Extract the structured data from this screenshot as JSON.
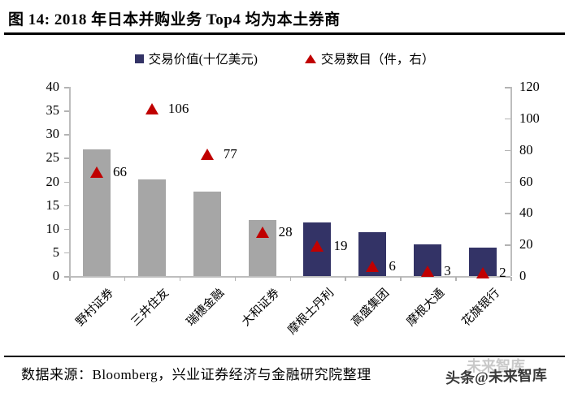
{
  "header": {
    "title": "图 14: 2018 年日本并购业务 Top4 均为本土券商"
  },
  "legend": {
    "bars": "交易价值(十亿美元)",
    "markers": "交易数目（件，右）"
  },
  "chart_data": {
    "type": "bar",
    "title": "2018 年日本并购业务 Top4 均为本土券商",
    "categories": [
      "野村证券",
      "三井住友",
      "瑞穗金融",
      "大和证券",
      "摩根士丹利",
      "高盛集团",
      "摩根大通",
      "花旗银行"
    ],
    "series": [
      {
        "name": "交易价值(十亿美元)",
        "type": "bar",
        "axis": "left",
        "values": [
          26.7,
          20.5,
          17.8,
          11.9,
          11.3,
          9.2,
          6.7,
          6.0
        ],
        "bar_colors": [
          "#a6a6a6",
          "#a6a6a6",
          "#a6a6a6",
          "#a6a6a6",
          "#333366",
          "#333366",
          "#333366",
          "#333366"
        ]
      },
      {
        "name": "交易数目（件，右）",
        "type": "scatter",
        "axis": "right",
        "marker": "triangle",
        "color": "#c00000",
        "values": [
          66,
          106,
          77,
          28,
          19,
          6,
          3,
          2
        ]
      }
    ],
    "left_axis": {
      "min": 0,
      "max": 40,
      "ticks": [
        0,
        5,
        10,
        15,
        20,
        25,
        30,
        35,
        40
      ]
    },
    "right_axis": {
      "min": 0,
      "max": 120,
      "ticks": [
        0,
        20,
        40,
        60,
        80,
        100,
        120
      ]
    },
    "grid": false,
    "legend_position": "top"
  },
  "footer": {
    "source": "数据来源：Bloomberg，兴业证券经济与金融研究院整理",
    "watermark": "头条@未来智库",
    "watermark_back": "未来智库"
  },
  "colors": {
    "bar_gray": "#a6a6a6",
    "bar_navy": "#333366",
    "marker_red": "#c00000",
    "axis_gray": "#bdbdbd",
    "rule_black": "#000000"
  }
}
